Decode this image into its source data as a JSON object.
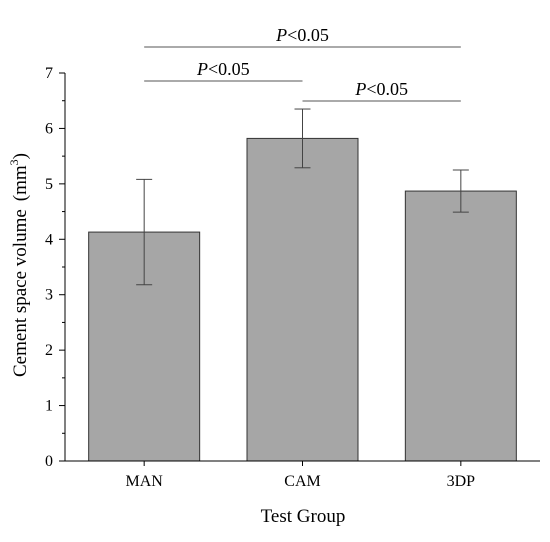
{
  "chart_data": {
    "type": "bar",
    "categories": [
      "MAN",
      "CAM",
      "3DP"
    ],
    "values": [
      4.13,
      5.82,
      4.87
    ],
    "error": [
      0.95,
      0.53,
      0.38
    ],
    "ylabel": "Cement space volume",
    "ylabel_unit": "(mm",
    "ylabel_unit_sup": "3",
    "ylabel_unit_close": ")",
    "xlabel": "Test Group",
    "ylim": [
      0,
      7
    ],
    "yticks": [
      "0",
      "1",
      "2",
      "3",
      "4",
      "5",
      "6",
      "7"
    ],
    "bar_color": "#a6a6a6",
    "grid": false,
    "annotations": [
      {
        "p": "P",
        "text": "<0.05",
        "from": 0,
        "to": 2,
        "level": 1
      },
      {
        "p": "P",
        "text": "<0.05",
        "from": 0,
        "to": 1,
        "level": 2
      },
      {
        "p": "P",
        "text": "<0.05",
        "from": 1,
        "to": 2,
        "level": 3
      }
    ]
  }
}
